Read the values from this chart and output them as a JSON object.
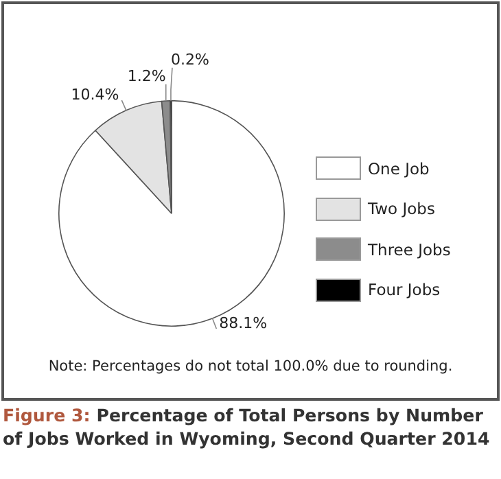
{
  "chart_data": {
    "type": "pie",
    "title": "Figure 3: Percentage of Total Persons by Number of Jobs Worked in Wyoming, Second Quarter 2014",
    "categories": [
      "One Job",
      "Two Jobs",
      "Three Jobs",
      "Four Jobs"
    ],
    "values": [
      88.1,
      10.4,
      1.2,
      0.2
    ],
    "value_labels": [
      "88.1%",
      "10.4%",
      "1.2%",
      "0.2%"
    ],
    "colors": [
      "#ffffff",
      "#e3e3e3",
      "#8c8c8c",
      "#000000"
    ],
    "legend": "right",
    "annotations": [
      "Note: Percentages do not total 100.0% due to rounding."
    ]
  }
}
